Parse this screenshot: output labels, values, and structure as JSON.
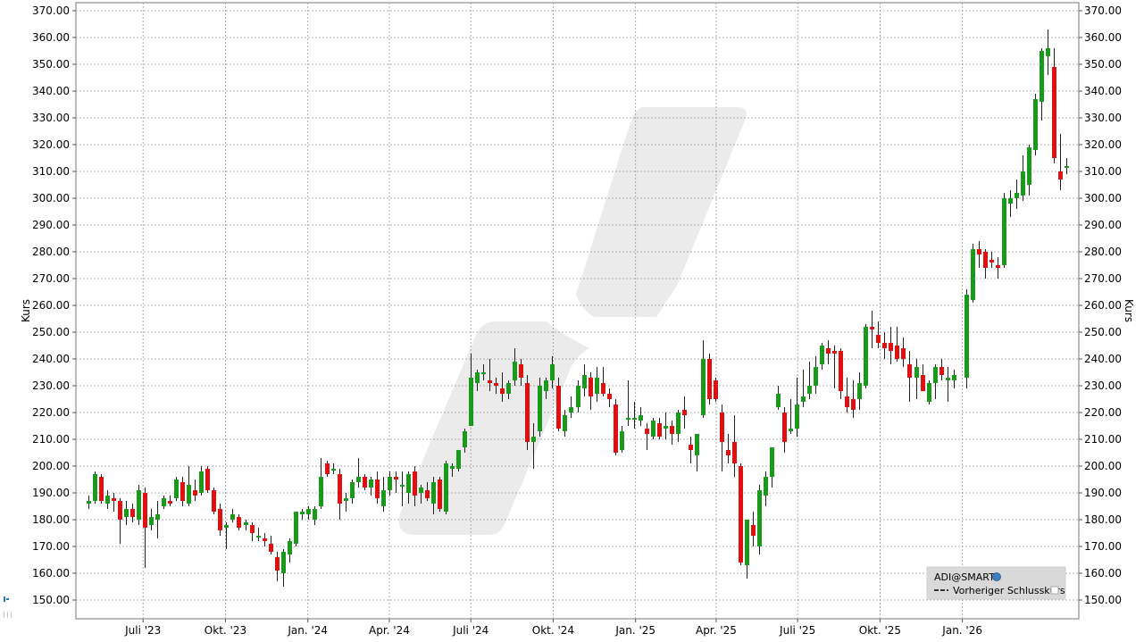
{
  "chart_data": {
    "type": "candlestick",
    "ylabel": "Kurs",
    "ylim": [
      143,
      373
    ],
    "y_ticks": [
      "150.00",
      "160.00",
      "170.00",
      "180.00",
      "190.00",
      "200.00",
      "210.00",
      "220.00",
      "230.00",
      "240.00",
      "250.00",
      "260.00",
      "270.00",
      "280.00",
      "290.00",
      "300.00",
      "310.00",
      "320.00",
      "330.00",
      "340.00",
      "350.00",
      "360.00",
      "370.00"
    ],
    "x_ticks": [
      "Juli '23",
      "Okt. '23",
      "Jan. '24",
      "Apr. '24",
      "Juli '24",
      "Okt. '24",
      "Jan. '25",
      "Apr. '25",
      "Juli '25",
      "Okt. '25",
      "Jan. '26"
    ],
    "grid": true,
    "legend_position": "bottom-right",
    "legend": {
      "symbol": "ADI@SMART",
      "line": "Vorheriger Schlusskurs"
    },
    "colors": {
      "up": "#1a9a1a",
      "down": "#e01010",
      "grid": "#9a9a9a",
      "axis": "#555555",
      "legend_bg": "#d9d9d9",
      "watermark": "#ebebeb"
    },
    "period": "weekly",
    "candles": [
      {
        "date": "2023-05-01",
        "o": 186,
        "h": 189,
        "l": 184,
        "c": 187
      },
      {
        "date": "2023-05-08",
        "o": 187,
        "h": 198,
        "l": 186,
        "c": 197
      },
      {
        "date": "2023-05-15",
        "o": 196,
        "h": 197,
        "l": 186,
        "c": 187
      },
      {
        "date": "2023-05-22",
        "o": 186,
        "h": 191,
        "l": 184,
        "c": 189
      },
      {
        "date": "2023-05-29",
        "o": 188,
        "h": 190,
        "l": 183,
        "c": 187
      },
      {
        "date": "2023-06-05",
        "o": 187,
        "h": 188,
        "l": 171,
        "c": 180
      },
      {
        "date": "2023-06-12",
        "o": 181,
        "h": 187,
        "l": 178,
        "c": 184
      },
      {
        "date": "2023-06-19",
        "o": 184,
        "h": 186,
        "l": 179,
        "c": 181
      },
      {
        "date": "2023-06-26",
        "o": 180,
        "h": 193,
        "l": 178,
        "c": 191
      },
      {
        "date": "2023-07-03",
        "o": 190,
        "h": 192,
        "l": 162,
        "c": 177
      },
      {
        "date": "2023-07-10",
        "o": 178,
        "h": 184,
        "l": 176,
        "c": 181
      },
      {
        "date": "2023-07-17",
        "o": 180,
        "h": 187,
        "l": 173,
        "c": 182
      },
      {
        "date": "2023-07-24",
        "o": 185,
        "h": 189,
        "l": 184,
        "c": 188
      },
      {
        "date": "2023-07-31",
        "o": 187,
        "h": 189,
        "l": 185,
        "c": 186
      },
      {
        "date": "2023-08-07",
        "o": 188,
        "h": 196,
        "l": 187,
        "c": 195
      },
      {
        "date": "2023-08-14",
        "o": 194,
        "h": 196,
        "l": 185,
        "c": 187
      },
      {
        "date": "2023-08-21",
        "o": 186,
        "h": 200,
        "l": 185,
        "c": 193
      },
      {
        "date": "2023-08-28",
        "o": 191,
        "h": 195,
        "l": 187,
        "c": 189
      },
      {
        "date": "2023-09-04",
        "o": 190,
        "h": 200,
        "l": 189,
        "c": 198
      },
      {
        "date": "2023-09-11",
        "o": 199,
        "h": 200,
        "l": 190,
        "c": 191
      },
      {
        "date": "2023-09-18",
        "o": 191,
        "h": 192,
        "l": 182,
        "c": 183
      },
      {
        "date": "2023-09-25",
        "o": 184,
        "h": 186,
        "l": 174,
        "c": 176
      },
      {
        "date": "2023-10-02",
        "o": 177,
        "h": 179,
        "l": 169,
        "c": 178
      },
      {
        "date": "2023-10-09",
        "o": 180,
        "h": 184,
        "l": 179,
        "c": 182
      },
      {
        "date": "2023-10-16",
        "o": 181,
        "h": 182,
        "l": 176,
        "c": 177
      },
      {
        "date": "2023-10-23",
        "o": 178,
        "h": 180,
        "l": 176,
        "c": 179
      },
      {
        "date": "2023-10-30",
        "o": 178,
        "h": 179,
        "l": 172,
        "c": 175
      },
      {
        "date": "2023-11-06",
        "o": 174,
        "h": 177,
        "l": 172,
        "c": 174
      },
      {
        "date": "2023-11-13",
        "o": 173,
        "h": 175,
        "l": 170,
        "c": 172
      },
      {
        "date": "2023-11-20",
        "o": 171,
        "h": 174,
        "l": 167,
        "c": 168
      },
      {
        "date": "2023-11-27",
        "o": 166,
        "h": 168,
        "l": 157,
        "c": 161
      },
      {
        "date": "2023-12-04",
        "o": 160,
        "h": 169,
        "l": 155,
        "c": 168
      },
      {
        "date": "2023-12-11",
        "o": 167,
        "h": 173,
        "l": 164,
        "c": 172
      },
      {
        "date": "2023-12-18",
        "o": 171,
        "h": 183,
        "l": 170,
        "c": 183
      },
      {
        "date": "2023-12-25",
        "o": 182,
        "h": 184,
        "l": 180,
        "c": 183
      },
      {
        "date": "2024-01-01",
        "o": 182,
        "h": 185,
        "l": 180,
        "c": 184
      },
      {
        "date": "2024-01-08",
        "o": 180,
        "h": 185,
        "l": 178,
        "c": 184
      },
      {
        "date": "2024-01-15",
        "o": 185,
        "h": 203,
        "l": 184,
        "c": 196
      },
      {
        "date": "2024-01-22",
        "o": 201,
        "h": 202,
        "l": 196,
        "c": 197
      },
      {
        "date": "2024-01-29",
        "o": 199,
        "h": 201,
        "l": 197,
        "c": 199
      },
      {
        "date": "2024-02-05",
        "o": 197,
        "h": 199,
        "l": 180,
        "c": 186
      },
      {
        "date": "2024-02-12",
        "o": 187,
        "h": 190,
        "l": 183,
        "c": 188
      },
      {
        "date": "2024-02-19",
        "o": 188,
        "h": 195,
        "l": 186,
        "c": 194
      },
      {
        "date": "2024-02-26",
        "o": 194,
        "h": 203,
        "l": 192,
        "c": 196
      },
      {
        "date": "2024-03-04",
        "o": 196,
        "h": 197,
        "l": 191,
        "c": 192
      },
      {
        "date": "2024-03-11",
        "o": 192,
        "h": 196,
        "l": 189,
        "c": 195
      },
      {
        "date": "2024-03-18",
        "o": 195,
        "h": 198,
        "l": 186,
        "c": 188
      },
      {
        "date": "2024-03-25",
        "o": 185,
        "h": 196,
        "l": 183,
        "c": 191
      },
      {
        "date": "2024-04-01",
        "o": 191,
        "h": 198,
        "l": 189,
        "c": 196
      },
      {
        "date": "2024-04-08",
        "o": 196,
        "h": 198,
        "l": 190,
        "c": 195
      },
      {
        "date": "2024-04-15",
        "o": 193,
        "h": 198,
        "l": 185,
        "c": 193
      },
      {
        "date": "2024-04-22",
        "o": 190,
        "h": 198,
        "l": 186,
        "c": 197
      },
      {
        "date": "2024-04-29",
        "o": 198,
        "h": 200,
        "l": 185,
        "c": 189
      },
      {
        "date": "2024-05-06",
        "o": 190,
        "h": 193,
        "l": 186,
        "c": 192
      },
      {
        "date": "2024-05-13",
        "o": 191,
        "h": 194,
        "l": 187,
        "c": 188
      },
      {
        "date": "2024-05-20",
        "o": 186,
        "h": 196,
        "l": 182,
        "c": 194
      },
      {
        "date": "2024-05-27",
        "o": 195,
        "h": 196,
        "l": 183,
        "c": 184
      },
      {
        "date": "2024-06-03",
        "o": 183,
        "h": 202,
        "l": 182,
        "c": 201
      },
      {
        "date": "2024-06-10",
        "o": 199,
        "h": 201,
        "l": 196,
        "c": 200
      },
      {
        "date": "2024-06-17",
        "o": 199,
        "h": 206,
        "l": 198,
        "c": 206
      },
      {
        "date": "2024-06-24",
        "o": 207,
        "h": 214,
        "l": 205,
        "c": 213
      },
      {
        "date": "2024-07-01",
        "o": 215,
        "h": 242,
        "l": 215,
        "c": 233
      },
      {
        "date": "2024-07-08",
        "o": 231,
        "h": 236,
        "l": 228,
        "c": 235
      },
      {
        "date": "2024-07-15",
        "o": 235,
        "h": 238,
        "l": 232,
        "c": 235
      },
      {
        "date": "2024-07-22",
        "o": 232,
        "h": 240,
        "l": 228,
        "c": 231
      },
      {
        "date": "2024-07-29",
        "o": 231,
        "h": 233,
        "l": 227,
        "c": 230
      },
      {
        "date": "2024-08-05",
        "o": 229,
        "h": 235,
        "l": 224,
        "c": 227
      },
      {
        "date": "2024-08-12",
        "o": 227,
        "h": 232,
        "l": 225,
        "c": 231
      },
      {
        "date": "2024-08-19",
        "o": 232,
        "h": 244,
        "l": 230,
        "c": 239
      },
      {
        "date": "2024-08-26",
        "o": 238,
        "h": 240,
        "l": 230,
        "c": 233
      },
      {
        "date": "2024-09-02",
        "o": 231,
        "h": 234,
        "l": 206,
        "c": 209
      },
      {
        "date": "2024-09-09",
        "o": 209,
        "h": 216,
        "l": 199,
        "c": 211
      },
      {
        "date": "2024-09-16",
        "o": 213,
        "h": 233,
        "l": 211,
        "c": 230
      },
      {
        "date": "2024-09-23",
        "o": 228,
        "h": 233,
        "l": 225,
        "c": 232
      },
      {
        "date": "2024-09-30",
        "o": 232,
        "h": 241,
        "l": 229,
        "c": 238
      },
      {
        "date": "2024-10-07",
        "o": 230,
        "h": 233,
        "l": 213,
        "c": 214
      },
      {
        "date": "2024-10-14",
        "o": 213,
        "h": 221,
        "l": 211,
        "c": 219
      },
      {
        "date": "2024-10-21",
        "o": 220,
        "h": 226,
        "l": 218,
        "c": 222
      },
      {
        "date": "2024-10-28",
        "o": 222,
        "h": 232,
        "l": 220,
        "c": 230
      },
      {
        "date": "2024-11-04",
        "o": 229,
        "h": 238,
        "l": 226,
        "c": 234
      },
      {
        "date": "2024-11-11",
        "o": 233,
        "h": 235,
        "l": 221,
        "c": 226
      },
      {
        "date": "2024-11-18",
        "o": 227,
        "h": 237,
        "l": 224,
        "c": 233
      },
      {
        "date": "2024-11-25",
        "o": 231,
        "h": 237,
        "l": 226,
        "c": 227
      },
      {
        "date": "2024-12-02",
        "o": 227,
        "h": 229,
        "l": 222,
        "c": 225
      },
      {
        "date": "2024-12-09",
        "o": 223,
        "h": 225,
        "l": 204,
        "c": 205
      },
      {
        "date": "2024-12-16",
        "o": 206,
        "h": 215,
        "l": 205,
        "c": 213
      },
      {
        "date": "2024-12-23",
        "o": 218,
        "h": 232,
        "l": 215,
        "c": 218
      },
      {
        "date": "2024-12-30",
        "o": 218,
        "h": 224,
        "l": 214,
        "c": 218
      },
      {
        "date": "2025-01-06",
        "o": 217,
        "h": 222,
        "l": 215,
        "c": 219
      },
      {
        "date": "2025-01-13",
        "o": 214,
        "h": 216,
        "l": 206,
        "c": 212
      },
      {
        "date": "2025-01-20",
        "o": 211,
        "h": 218,
        "l": 210,
        "c": 217
      },
      {
        "date": "2025-01-27",
        "o": 216,
        "h": 218,
        "l": 210,
        "c": 211
      },
      {
        "date": "2025-02-03",
        "o": 214,
        "h": 220,
        "l": 210,
        "c": 215
      },
      {
        "date": "2025-02-10",
        "o": 215,
        "h": 217,
        "l": 208,
        "c": 212
      },
      {
        "date": "2025-02-17",
        "o": 212,
        "h": 221,
        "l": 209,
        "c": 220
      },
      {
        "date": "2025-02-24",
        "o": 221,
        "h": 226,
        "l": 214,
        "c": 219
      },
      {
        "date": "2025-03-03",
        "o": 208,
        "h": 211,
        "l": 201,
        "c": 206
      },
      {
        "date": "2025-03-10",
        "o": 204,
        "h": 210,
        "l": 198,
        "c": 212
      },
      {
        "date": "2025-03-17",
        "o": 219,
        "h": 247,
        "l": 218,
        "c": 240
      },
      {
        "date": "2025-03-24",
        "o": 240,
        "h": 242,
        "l": 223,
        "c": 225
      },
      {
        "date": "2025-03-31",
        "o": 232,
        "h": 233,
        "l": 224,
        "c": 225
      },
      {
        "date": "2025-04-07",
        "o": 220,
        "h": 223,
        "l": 198,
        "c": 209
      },
      {
        "date": "2025-04-14",
        "o": 206,
        "h": 212,
        "l": 201,
        "c": 204
      },
      {
        "date": "2025-04-21",
        "o": 209,
        "h": 219,
        "l": 196,
        "c": 201
      },
      {
        "date": "2025-04-28",
        "o": 200,
        "h": 201,
        "l": 163,
        "c": 164
      },
      {
        "date": "2025-05-05",
        "o": 163,
        "h": 180,
        "l": 158,
        "c": 180
      },
      {
        "date": "2025-05-12",
        "o": 178,
        "h": 183,
        "l": 170,
        "c": 174
      },
      {
        "date": "2025-05-19",
        "o": 170,
        "h": 193,
        "l": 167,
        "c": 191
      },
      {
        "date": "2025-05-26",
        "o": 189,
        "h": 198,
        "l": 185,
        "c": 196
      },
      {
        "date": "2025-06-02",
        "o": 196,
        "h": 206,
        "l": 192,
        "c": 207
      },
      {
        "date": "2025-06-09",
        "o": 222,
        "h": 230,
        "l": 221,
        "c": 227
      },
      {
        "date": "2025-06-16",
        "o": 220,
        "h": 222,
        "l": 205,
        "c": 209
      },
      {
        "date": "2025-06-23",
        "o": 213,
        "h": 225,
        "l": 212,
        "c": 214
      },
      {
        "date": "2025-06-30",
        "o": 214,
        "h": 233,
        "l": 211,
        "c": 223
      },
      {
        "date": "2025-07-07",
        "o": 224,
        "h": 236,
        "l": 222,
        "c": 226
      },
      {
        "date": "2025-07-14",
        "o": 227,
        "h": 239,
        "l": 225,
        "c": 230
      },
      {
        "date": "2025-07-21",
        "o": 230,
        "h": 241,
        "l": 227,
        "c": 237
      },
      {
        "date": "2025-07-28",
        "o": 238,
        "h": 246,
        "l": 236,
        "c": 245
      },
      {
        "date": "2025-08-04",
        "o": 244,
        "h": 247,
        "l": 238,
        "c": 242
      },
      {
        "date": "2025-08-11",
        "o": 243,
        "h": 245,
        "l": 229,
        "c": 242
      },
      {
        "date": "2025-08-18",
        "o": 243,
        "h": 244,
        "l": 225,
        "c": 228
      },
      {
        "date": "2025-08-25",
        "o": 226,
        "h": 233,
        "l": 220,
        "c": 222
      },
      {
        "date": "2025-09-01",
        "o": 225,
        "h": 232,
        "l": 218,
        "c": 221
      },
      {
        "date": "2025-09-08",
        "o": 225,
        "h": 235,
        "l": 221,
        "c": 231
      },
      {
        "date": "2025-09-15",
        "o": 230,
        "h": 253,
        "l": 229,
        "c": 252
      },
      {
        "date": "2025-09-22",
        "o": 252,
        "h": 258,
        "l": 244,
        "c": 251
      },
      {
        "date": "2025-09-29",
        "o": 249,
        "h": 254,
        "l": 244,
        "c": 246
      },
      {
        "date": "2025-10-06",
        "o": 246,
        "h": 250,
        "l": 240,
        "c": 244
      },
      {
        "date": "2025-10-13",
        "o": 246,
        "h": 252,
        "l": 238,
        "c": 243
      },
      {
        "date": "2025-10-20",
        "o": 245,
        "h": 252,
        "l": 239,
        "c": 240
      },
      {
        "date": "2025-10-27",
        "o": 244,
        "h": 248,
        "l": 237,
        "c": 240
      },
      {
        "date": "2025-11-03",
        "o": 238,
        "h": 243,
        "l": 224,
        "c": 233
      },
      {
        "date": "2025-11-10",
        "o": 233,
        "h": 240,
        "l": 225,
        "c": 237
      },
      {
        "date": "2025-11-17",
        "o": 234,
        "h": 238,
        "l": 228,
        "c": 228
      },
      {
        "date": "2025-11-24",
        "o": 224,
        "h": 232,
        "l": 223,
        "c": 231
      },
      {
        "date": "2025-12-01",
        "o": 231,
        "h": 238,
        "l": 225,
        "c": 237
      },
      {
        "date": "2025-12-08",
        "o": 237,
        "h": 240,
        "l": 232,
        "c": 234
      },
      {
        "date": "2025-12-15",
        "o": 232,
        "h": 237,
        "l": 224,
        "c": 233
      },
      {
        "date": "2025-12-22",
        "o": 232,
        "h": 236,
        "l": 229,
        "c": 234
      },
      {
        "date": "2026-01-05",
        "o": 233,
        "h": 266,
        "l": 229,
        "c": 264
      },
      {
        "date": "2026-01-12",
        "o": 262,
        "h": 283,
        "l": 261,
        "c": 281
      },
      {
        "date": "2026-01-19",
        "o": 281,
        "h": 284,
        "l": 274,
        "c": 279
      },
      {
        "date": "2026-01-26",
        "o": 280,
        "h": 281,
        "l": 270,
        "c": 274
      },
      {
        "date": "2026-02-02",
        "o": 277,
        "h": 280,
        "l": 274,
        "c": 276
      },
      {
        "date": "2026-02-09",
        "o": 275,
        "h": 278,
        "l": 270,
        "c": 274
      },
      {
        "date": "2026-02-16",
        "o": 275,
        "h": 302,
        "l": 274,
        "c": 300
      },
      {
        "date": "2026-02-23",
        "o": 298,
        "h": 303,
        "l": 293,
        "c": 300
      },
      {
        "date": "2026-03-02",
        "o": 300,
        "h": 307,
        "l": 296,
        "c": 302
      },
      {
        "date": "2026-03-09",
        "o": 301,
        "h": 316,
        "l": 299,
        "c": 310
      },
      {
        "date": "2026-03-16",
        "o": 305,
        "h": 320,
        "l": 301,
        "c": 319
      },
      {
        "date": "2026-03-23",
        "o": 318,
        "h": 339,
        "l": 316,
        "c": 337
      },
      {
        "date": "2026-03-30",
        "o": 336,
        "h": 356,
        "l": 329,
        "c": 355
      },
      {
        "date": "2026-04-06",
        "o": 353,
        "h": 363,
        "l": 346,
        "c": 356
      },
      {
        "date": "2026-04-13",
        "o": 349,
        "h": 356,
        "l": 313,
        "c": 315
      },
      {
        "date": "2026-04-20",
        "o": 310,
        "h": 324,
        "l": 303,
        "c": 307
      },
      {
        "date": "2026-04-27",
        "o": 312,
        "h": 315,
        "l": 309,
        "c": 312
      }
    ]
  }
}
